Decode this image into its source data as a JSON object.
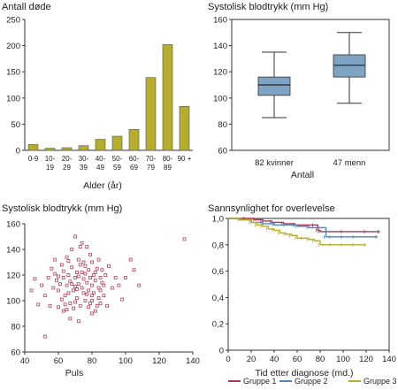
{
  "chart_data": [
    {
      "type": "bar",
      "title": "Antall døde",
      "xlabel": "Alder (år)",
      "ylabel": "",
      "categories": [
        "0-9",
        "10-19",
        "20-29",
        "30-39",
        "40-49",
        "50-59",
        "60-69",
        "70-79",
        "80-89",
        "90 +"
      ],
      "category_lines": [
        [
          "0-9"
        ],
        [
          "10-",
          "19"
        ],
        [
          "20-",
          "29"
        ],
        [
          "30-",
          "39"
        ],
        [
          "40-",
          "49"
        ],
        [
          "50-",
          "59"
        ],
        [
          "60-",
          "69"
        ],
        [
          "70-",
          "79"
        ],
        [
          "80-",
          "89"
        ],
        [
          "90 +"
        ]
      ],
      "values": [
        11,
        4,
        5,
        9,
        21,
        27,
        40,
        139,
        202,
        84
      ],
      "ylim": [
        0,
        250
      ],
      "yticks": [
        0,
        50,
        100,
        150,
        200,
        250
      ],
      "bar_color": "#b5ad2b"
    },
    {
      "type": "box",
      "title": "Systolisk blodtrykk (mm Hg)",
      "xlabel": "Antall",
      "ylabel": "",
      "categories": [
        "82 kvinner",
        "47 menn"
      ],
      "boxes": [
        {
          "whisker_low": 85,
          "q1": 102,
          "median": 110,
          "q3": 116,
          "whisker_high": 135
        },
        {
          "whisker_low": 96,
          "q1": 116,
          "median": 125,
          "q3": 133,
          "whisker_high": 150
        }
      ],
      "ylim": [
        60,
        160
      ],
      "yticks": [
        60,
        80,
        100,
        120,
        140,
        160
      ],
      "box_color": "#7fa3c2"
    },
    {
      "type": "scatter",
      "title": "Systolisk blodtrykk (mm Hg)",
      "xlabel": "Puls",
      "ylabel": "",
      "xlim": [
        40,
        140
      ],
      "ylim": [
        60,
        160
      ],
      "xticks": [
        40,
        60,
        80,
        100,
        120,
        140
      ],
      "yticks": [
        60,
        80,
        100,
        120,
        140,
        160
      ],
      "marker_color": "#b3405e",
      "points": [
        [
          52,
          72
        ],
        [
          48,
          97
        ],
        [
          55,
          96
        ],
        [
          60,
          95
        ],
        [
          63,
          92
        ],
        [
          67,
          86
        ],
        [
          72,
          84
        ],
        [
          80,
          90
        ],
        [
          85,
          98
        ],
        [
          44,
          108
        ],
        [
          46,
          117
        ],
        [
          50,
          112
        ],
        [
          52,
          104
        ],
        [
          54,
          118
        ],
        [
          56,
          125
        ],
        [
          57,
          110
        ],
        [
          58,
          121
        ],
        [
          59,
          116
        ],
        [
          60,
          108
        ],
        [
          61,
          113
        ],
        [
          62,
          128
        ],
        [
          63,
          118
        ],
        [
          64,
          104
        ],
        [
          65,
          134
        ],
        [
          65,
          112
        ],
        [
          66,
          120
        ],
        [
          67,
          115
        ],
        [
          67,
          98
        ],
        [
          68,
          126
        ],
        [
          68,
          140
        ],
        [
          69,
          108
        ],
        [
          70,
          150
        ],
        [
          70,
          118
        ],
        [
          71,
          122
        ],
        [
          71,
          102
        ],
        [
          72,
          113
        ],
        [
          72,
          132
        ],
        [
          73,
          96
        ],
        [
          73,
          128
        ],
        [
          74,
          145
        ],
        [
          74,
          110
        ],
        [
          75,
          117
        ],
        [
          75,
          106
        ],
        [
          76,
          121
        ],
        [
          76,
          100
        ],
        [
          77,
          142
        ],
        [
          77,
          114
        ],
        [
          78,
          108
        ],
        [
          78,
          124
        ],
        [
          79,
          118
        ],
        [
          79,
          98
        ],
        [
          80,
          112
        ],
        [
          80,
          130
        ],
        [
          81,
          106
        ],
        [
          81,
          120
        ],
        [
          82,
          116
        ],
        [
          82,
          92
        ],
        [
          83,
          125
        ],
        [
          84,
          110
        ],
        [
          84,
          102
        ],
        [
          85,
          118
        ],
        [
          86,
          114
        ],
        [
          87,
          104
        ],
        [
          88,
          120
        ],
        [
          89,
          96
        ],
        [
          90,
          127
        ],
        [
          92,
          110
        ],
        [
          94,
          118
        ],
        [
          96,
          112
        ],
        [
          98,
          101
        ],
        [
          100,
          118
        ],
        [
          103,
          132
        ],
        [
          105,
          124
        ],
        [
          108,
          112
        ],
        [
          58,
          132
        ],
        [
          62,
          101
        ],
        [
          64,
          97
        ],
        [
          66,
          106
        ],
        [
          69,
          94
        ],
        [
          70,
          111
        ],
        [
          72,
          119
        ],
        [
          75,
          130
        ],
        [
          77,
          105
        ],
        [
          79,
          136
        ],
        [
          80,
          100
        ],
        [
          83,
          96
        ],
        [
          85,
          108
        ],
        [
          86,
          124
        ],
        [
          60,
          119
        ],
        [
          63,
          123
        ],
        [
          66,
          131
        ],
        [
          68,
          113
        ],
        [
          71,
          109
        ],
        [
          74,
          122
        ],
        [
          76,
          127
        ],
        [
          78,
          95
        ],
        [
          80,
          104
        ],
        [
          82,
          122
        ],
        [
          84,
          132
        ],
        [
          87,
          112
        ],
        [
          70,
          99
        ],
        [
          73,
          142
        ],
        [
          65,
          93
        ],
        [
          135,
          148
        ]
      ]
    },
    {
      "type": "line",
      "title": "Sannsynlighet for overlevelse",
      "xlabel": "Tid etter diagnose (md.)",
      "ylabel": "",
      "xlim": [
        0,
        140
      ],
      "ylim": [
        0,
        1.0
      ],
      "xticks": [
        0,
        20,
        40,
        60,
        80,
        100,
        120,
        140
      ],
      "yticks": [
        0,
        0.2,
        0.4,
        0.6,
        0.8,
        1.0
      ],
      "ytick_labels": [
        "0",
        "0,2",
        "0,4",
        "0,6",
        "0,8",
        "1,0"
      ],
      "series": [
        {
          "name": "Gruppe 1",
          "color": "#a3385b",
          "x": [
            0,
            15,
            22,
            30,
            38,
            48,
            58,
            75,
            78,
            80,
            100,
            120,
            132
          ],
          "y": [
            1.0,
            1.0,
            0.99,
            0.98,
            0.97,
            0.96,
            0.95,
            0.95,
            0.91,
            0.9,
            0.9,
            0.9,
            0.9
          ]
        },
        {
          "name": "Gruppe 2",
          "color": "#4f86b8",
          "x": [
            0,
            10,
            20,
            30,
            40,
            50,
            60,
            70,
            80,
            85,
            90,
            100,
            110,
            130
          ],
          "y": [
            1.0,
            0.99,
            0.97,
            0.96,
            0.95,
            0.95,
            0.94,
            0.93,
            0.93,
            0.86,
            0.86,
            0.86,
            0.86,
            0.86
          ]
        },
        {
          "name": "Gruppe 3",
          "color": "#b5ad2b",
          "x": [
            0,
            10,
            20,
            25,
            30,
            35,
            40,
            45,
            50,
            55,
            60,
            65,
            70,
            75,
            80,
            90,
            100,
            110,
            120
          ],
          "y": [
            1.0,
            0.99,
            0.97,
            0.95,
            0.94,
            0.92,
            0.91,
            0.89,
            0.88,
            0.87,
            0.85,
            0.85,
            0.84,
            0.83,
            0.8,
            0.8,
            0.8,
            0.8,
            0.8
          ]
        }
      ],
      "legend_position": "bottom"
    }
  ]
}
